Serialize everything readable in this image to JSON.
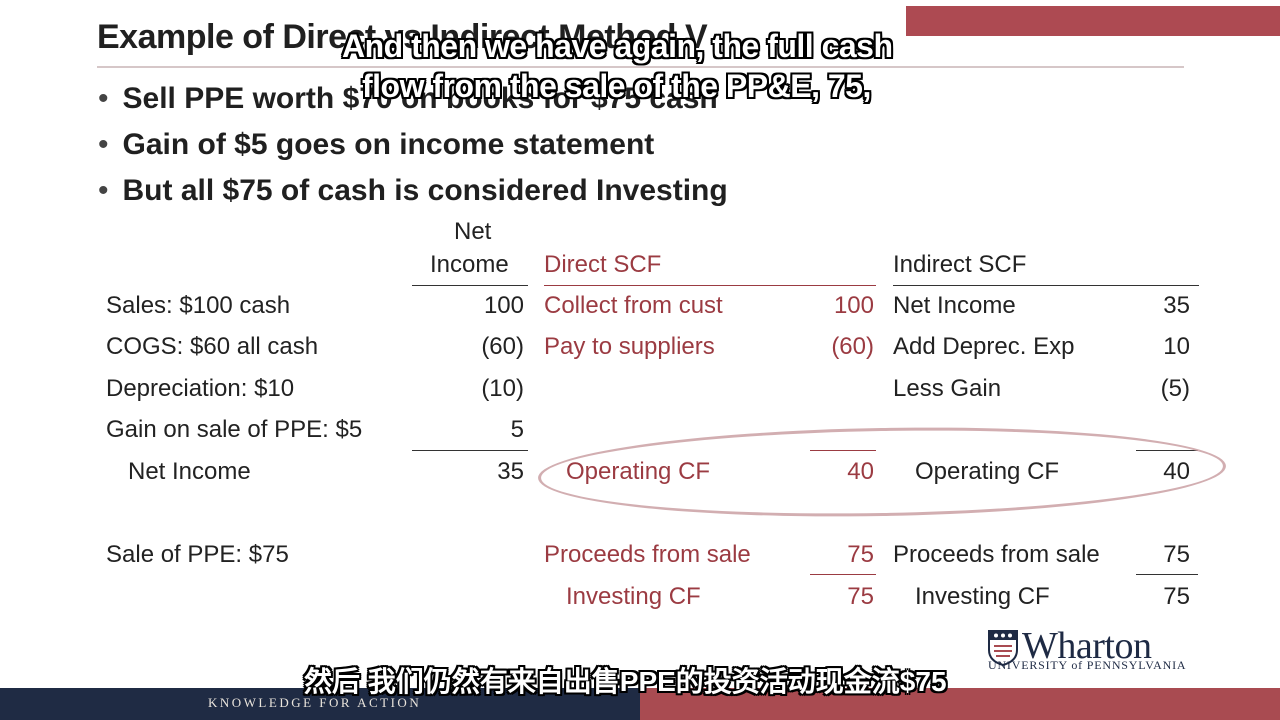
{
  "slide": {
    "title": "Example of Direct vs Indirect Method V",
    "bullets": [
      "Sell PPE worth $70 on books for $75 cash",
      "Gain of $5 goes on income statement",
      "But all $75 of cash is considered Investing"
    ]
  },
  "table": {
    "headers": {
      "net_income_line1": "Net",
      "net_income_line2": "Income",
      "direct": "Direct SCF",
      "indirect": "Indirect SCF"
    },
    "left_items": [
      "Sales: $100 cash",
      "COGS: $60 all cash",
      "Depreciation: $10",
      "Gain on sale of PPE: $5",
      "Net Income",
      "Sale of PPE: $75"
    ],
    "net_income_values": [
      "100",
      "(60)",
      "(10)",
      "5",
      "35"
    ],
    "direct_items": [
      "Collect from cust",
      "Pay to suppliers",
      "Operating CF",
      "Proceeds from sale",
      "Investing CF"
    ],
    "direct_values": [
      "100",
      "(60)",
      "40",
      "75",
      "75"
    ],
    "indirect_items": [
      "Net Income",
      "Add Deprec. Exp",
      "Less Gain",
      "Operating CF",
      "Proceeds from sale",
      "Investing CF"
    ],
    "indirect_values": [
      "35",
      "10",
      "(5)",
      "40",
      "75",
      "75"
    ]
  },
  "subtitles": {
    "en_line1": "And then we have again, the full cash",
    "en_line2": "flow from the sale of the PP&E, 75,",
    "zh": "然后 我们仍然有来自出售PPE的投资活动现金流$75"
  },
  "branding": {
    "logo_word": "Wharton",
    "logo_sub": "UNIVERSITY of PENNSYLVANIA",
    "tagline": "KNOWLEDGE FOR ACTION",
    "colors": {
      "maroon": "#9b3b42",
      "navy": "#1f2b44",
      "accent": "#ad4a52"
    }
  }
}
